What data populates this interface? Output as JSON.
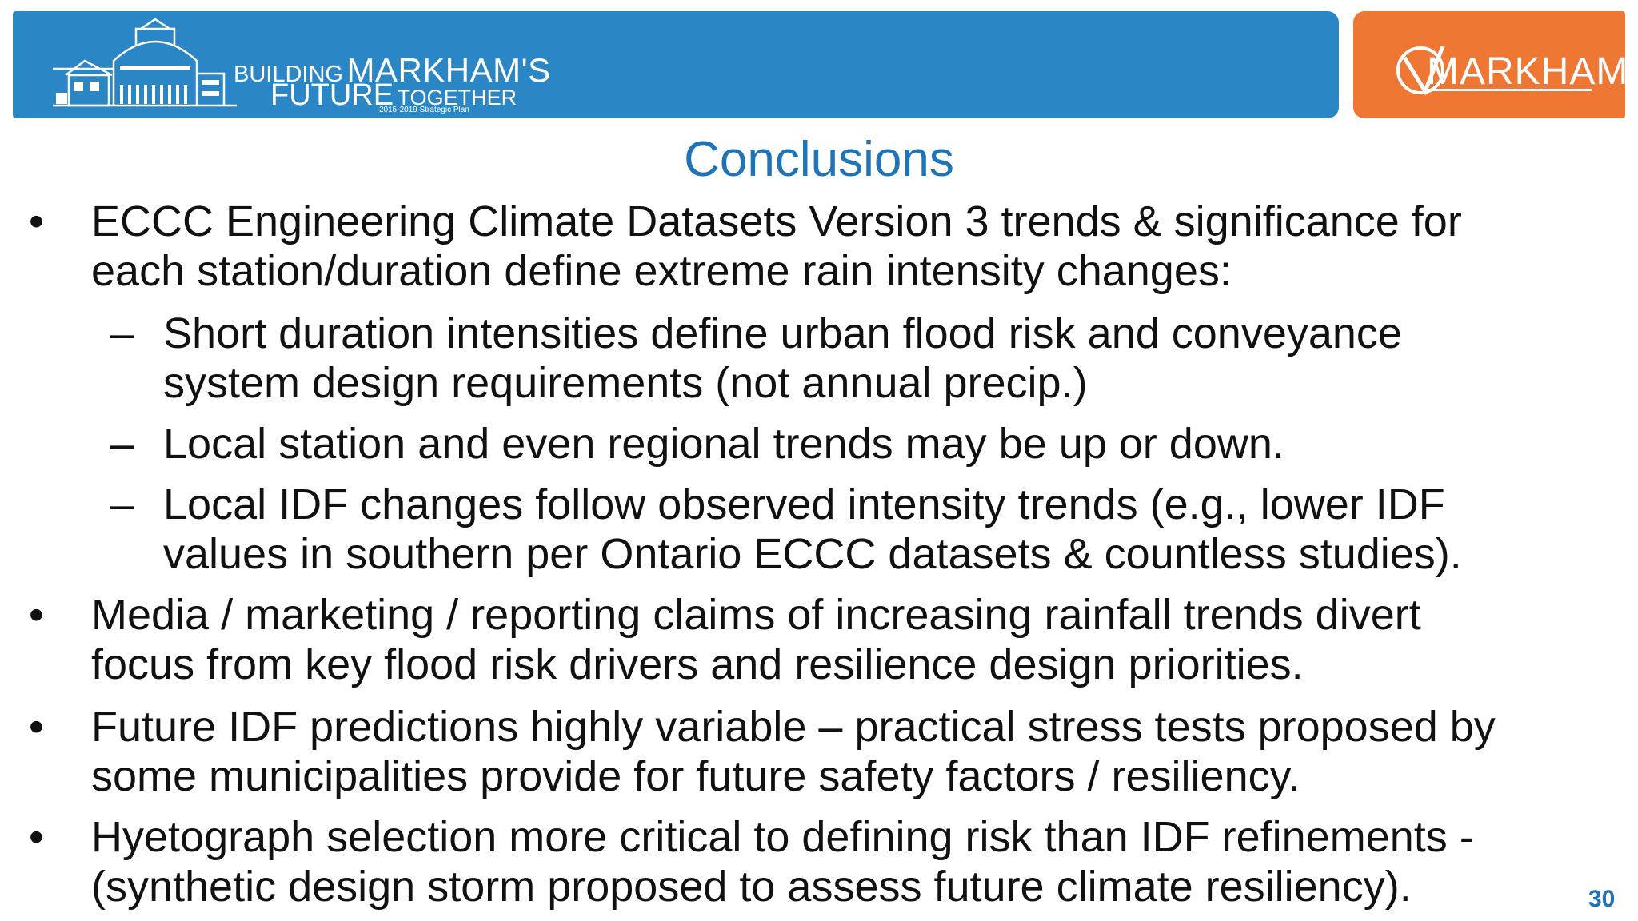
{
  "banner": {
    "logo_building": "BUILDING",
    "logo_markhams": "MARKHAM'S",
    "logo_future": "FUTURE",
    "logo_together": "TOGETHER",
    "logo_plan": "2015-2019 Strategic Plan",
    "brand_word": "MARKHAM",
    "left_color": "#2b86c5",
    "right_color": "#ee7733"
  },
  "slide": {
    "title": "Conclusions",
    "page_number": "30",
    "bullets": [
      {
        "lines": [
          "ECCC Engineering Climate Datasets Version 3 trends & significance for",
          "each station/duration define extreme rain intensity changes:"
        ],
        "sub": [
          {
            "lines": [
              "Short duration intensities define urban flood risk and conveyance",
              "system design requirements (not annual precip.)"
            ]
          },
          {
            "lines": [
              "Local station and even regional trends may be up or down."
            ]
          },
          {
            "lines": [
              "Local IDF changes follow observed intensity trends (e.g., lower IDF",
              "values in southern per Ontario ECCC datasets & countless studies)."
            ]
          }
        ]
      },
      {
        "lines": [
          "Media / marketing / reporting claims of increasing rainfall trends divert",
          "focus from key flood risk drivers and resilience design priorities."
        ]
      },
      {
        "lines": [
          "Future IDF predictions highly variable – practical stress tests proposed by",
          "some municipalities provide for future safety factors / resiliency."
        ]
      },
      {
        "lines": [
          "Hyetograph selection more critical to defining risk than IDF refinements -",
          "(synthetic design storm proposed to assess future climate resiliency)."
        ]
      }
    ]
  }
}
